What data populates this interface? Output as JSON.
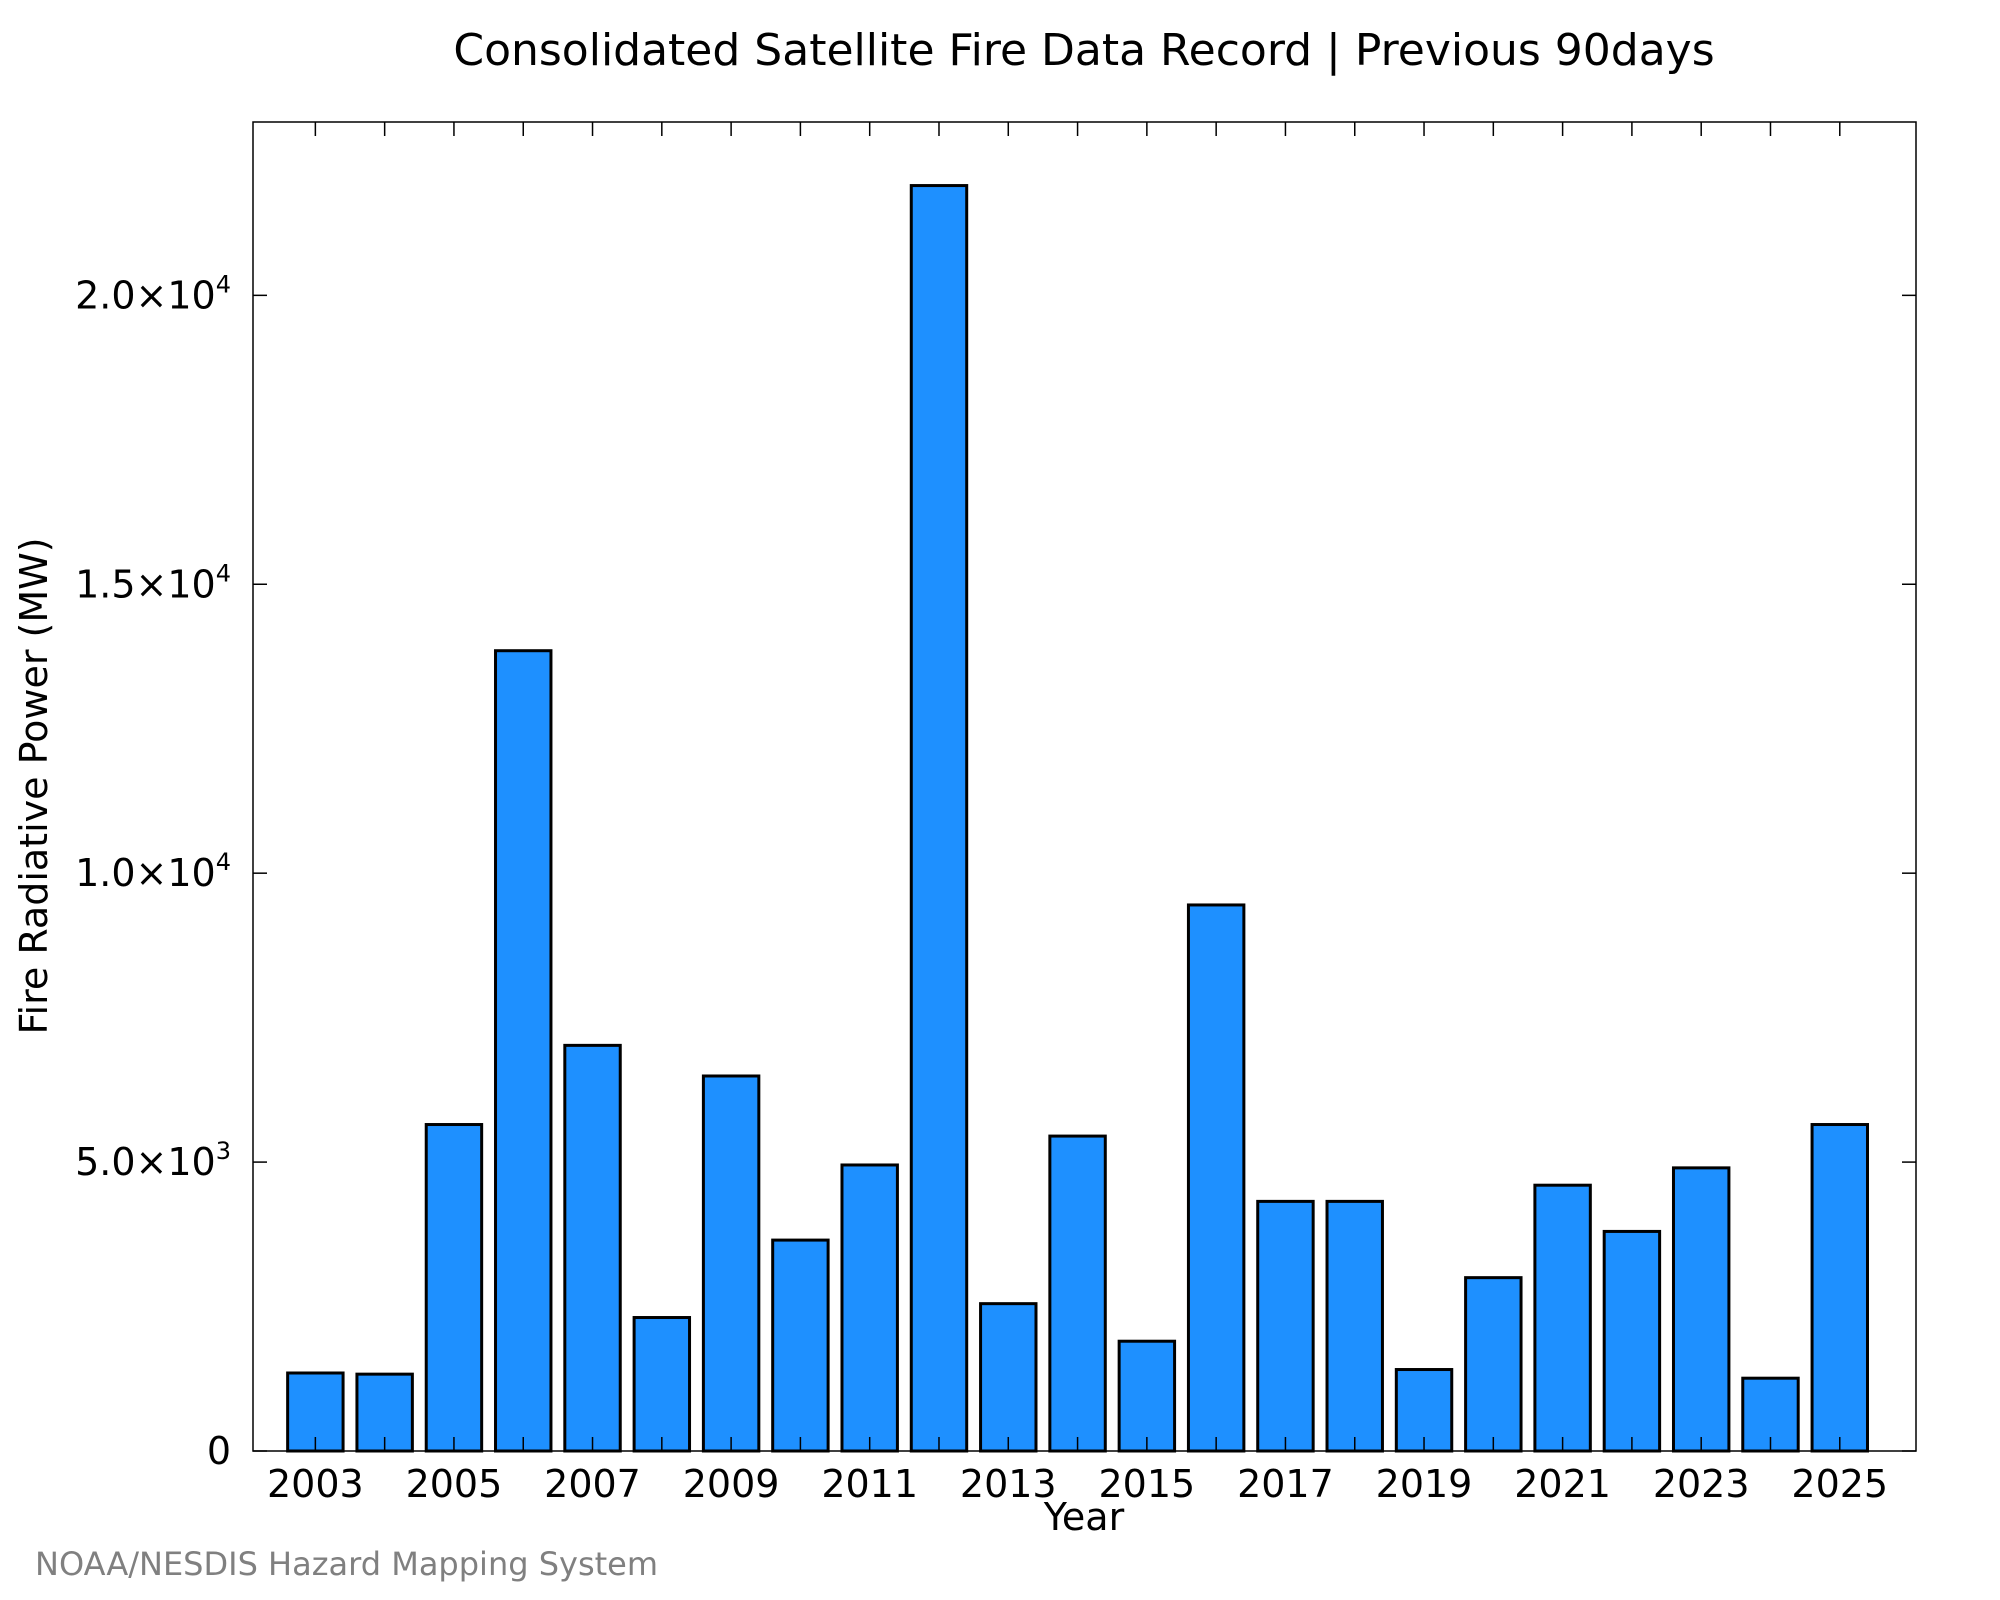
{
  "chart_data": {
    "type": "bar",
    "title": "Consolidated Satellite Fire Data Record | Previous 90days",
    "xlabel": "Year",
    "ylabel": "Fire Radiative Power (MW)",
    "categories": [
      "2003",
      "2004",
      "2005",
      "2006",
      "2007",
      "2008",
      "2009",
      "2010",
      "2011",
      "2012",
      "2013",
      "2014",
      "2015",
      "2016",
      "2017",
      "2018",
      "2019",
      "2020",
      "2021",
      "2022",
      "2023",
      "2024",
      "2025"
    ],
    "values": [
      1350,
      1330,
      5650,
      13850,
      7020,
      2310,
      6490,
      3650,
      4950,
      21900,
      2550,
      5450,
      1900,
      9450,
      4320,
      4320,
      1410,
      3000,
      4600,
      3800,
      4900,
      1260,
      5650
    ],
    "x_tick_labels": [
      "2003",
      "2005",
      "2007",
      "2009",
      "2011",
      "2013",
      "2015",
      "2017",
      "2019",
      "2021",
      "2023",
      "2025"
    ],
    "y_ticks": [
      {
        "value": 0,
        "mantissa": "0",
        "exponent": ""
      },
      {
        "value": 5000,
        "mantissa": "5.0×10",
        "exponent": "3"
      },
      {
        "value": 10000,
        "mantissa": "1.0×10",
        "exponent": "4"
      },
      {
        "value": 15000,
        "mantissa": "1.5×10",
        "exponent": "4"
      },
      {
        "value": 20000,
        "mantissa": "2.0×10",
        "exponent": "4"
      }
    ],
    "ylim": [
      0,
      23000
    ],
    "xlim": [
      2002.1,
      2026.1
    ],
    "grid": false,
    "legend": "none",
    "bar_color": "#1e90ff"
  },
  "credit": "NOAA/NESDIS Hazard Mapping System"
}
